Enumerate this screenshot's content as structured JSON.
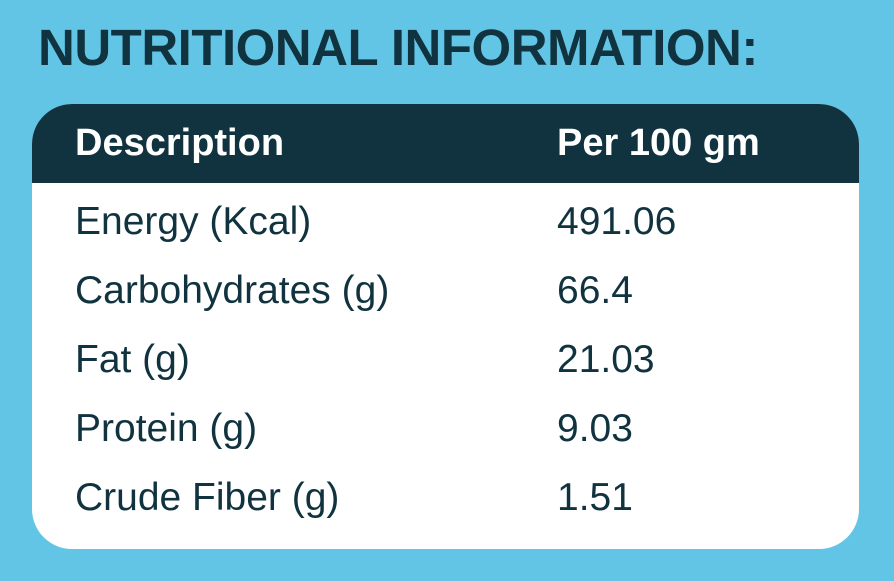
{
  "title": "NUTRITIONAL INFORMATION:",
  "table": {
    "headers": {
      "description": "Description",
      "per": "Per 100 gm"
    },
    "rows": [
      {
        "description": "Energy (Kcal)",
        "value": "491.06"
      },
      {
        "description": "Carbohydrates (g)",
        "value": "66.4"
      },
      {
        "description": "Fat (g)",
        "value": "21.03"
      },
      {
        "description": "Protein (g)",
        "value": "9.03"
      },
      {
        "description": "Crude Fiber (g)",
        "value": "1.51"
      }
    ]
  },
  "colors": {
    "background": "#62c5e6",
    "header_bg": "#10333f",
    "card_bg": "#ffffff",
    "text": "#10333f"
  }
}
